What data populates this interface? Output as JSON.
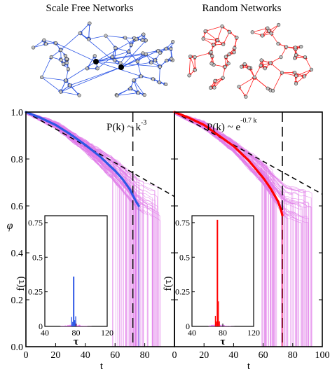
{
  "titles": {
    "left": "Scale Free Networks",
    "right": "Random Networks"
  },
  "colors": {
    "sf_mean": "#2e57e6",
    "sf_edge": "#2e57e6",
    "rn_mean": "#ff0000",
    "rn_edge": "#ff2020",
    "runs": "#e07ae8",
    "node_fill": "#bfbfbf",
    "hub": "#000000",
    "dashed": "#000000"
  },
  "chart_data": [
    {
      "id": "scale-free",
      "type": "line",
      "annotation": {
        "text": "P(k) ~ k",
        "sup": "-3"
      },
      "xlabel": "t",
      "ylabel": "φ",
      "xlim": [
        0,
        100
      ],
      "ylim": [
        0.0,
        1.0
      ],
      "xticks": [
        0,
        20,
        40,
        60,
        80
      ],
      "yticks": [
        0.0,
        0.2,
        0.4,
        0.6,
        0.8,
        1.0
      ],
      "vline_x": 72,
      "dashed_line": {
        "x": [
          0,
          100
        ],
        "y": [
          1.0,
          0.64
        ]
      },
      "mean_series": {
        "x": [
          0,
          10,
          20,
          30,
          40,
          50,
          60,
          65,
          70,
          72,
          74,
          76
        ],
        "y": [
          1.0,
          0.975,
          0.945,
          0.905,
          0.86,
          0.81,
          0.75,
          0.715,
          0.67,
          0.645,
          0.62,
          0.6
        ]
      },
      "run_spread": {
        "x": [
          0,
          20,
          40,
          60,
          75,
          95
        ],
        "lo": [
          0.995,
          0.93,
          0.83,
          0.7,
          0.58,
          0.5
        ],
        "hi": [
          1.0,
          0.96,
          0.88,
          0.8,
          0.72,
          0.67
        ]
      },
      "inset": {
        "xlabel": "τ",
        "ylabel": "f(τ)",
        "xlim": [
          40,
          120
        ],
        "ylim": [
          0,
          0.8
        ],
        "xticks": [
          40,
          80,
          120
        ],
        "yticks": [
          0,
          0.25,
          0.5,
          0.75
        ],
        "peak_tau": 77,
        "peak_f": 0.36,
        "spread_tau": [
          60,
          100
        ]
      }
    },
    {
      "id": "random",
      "type": "line",
      "annotation": {
        "text": "P(k) ~ e",
        "sup": "-0.7 k"
      },
      "xlabel": "t",
      "ylabel": "",
      "xlim": [
        0,
        100
      ],
      "ylim": [
        0.0,
        1.0
      ],
      "xticks": [
        0,
        20,
        40,
        60,
        80,
        100
      ],
      "yticks": [
        0.0,
        0.2,
        0.4,
        0.6,
        0.8,
        1.0
      ],
      "vline_x": 73,
      "dashed_line": {
        "x": [
          0,
          100
        ],
        "y": [
          1.0,
          0.65
        ]
      },
      "mean_series": {
        "x": [
          0,
          10,
          20,
          30,
          40,
          50,
          60,
          65,
          70,
          72,
          73
        ],
        "y": [
          1.0,
          0.975,
          0.945,
          0.9,
          0.855,
          0.795,
          0.72,
          0.675,
          0.62,
          0.585,
          0.56
        ]
      },
      "run_spread": {
        "x": [
          0,
          20,
          40,
          60,
          75,
          95
        ],
        "lo": [
          0.995,
          0.93,
          0.83,
          0.69,
          0.55,
          0.5
        ],
        "hi": [
          1.0,
          0.96,
          0.88,
          0.79,
          0.7,
          0.68
        ]
      },
      "inset": {
        "xlabel": "τ",
        "ylabel": "f(τ)",
        "xlim": [
          40,
          120
        ],
        "ylim": [
          0,
          0.8
        ],
        "xticks": [
          40,
          80,
          120
        ],
        "yticks": [
          0,
          0.25,
          0.5,
          0.75
        ],
        "peak_tau": 73,
        "peak_f": 0.77,
        "spread_tau": [
          62,
          95
        ]
      }
    }
  ]
}
